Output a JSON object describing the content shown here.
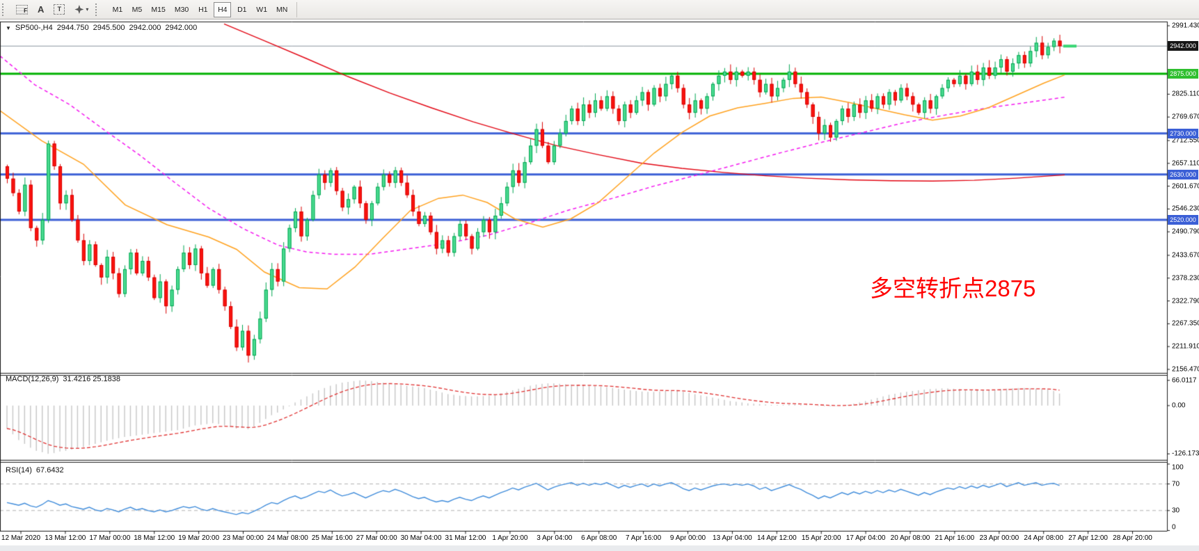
{
  "toolbar": {
    "tools": {
      "fibonacci": "F",
      "text": "A",
      "text_label": "T",
      "arrows_caret": "▾"
    },
    "timeframes": [
      "M1",
      "M5",
      "M15",
      "M30",
      "H1",
      "H4",
      "D1",
      "W1",
      "MN"
    ],
    "active_timeframe": "H4"
  },
  "quote_header": {
    "expander": "▼",
    "symbol": "SP500-,H4",
    "open": "2944.750",
    "high": "2945.500",
    "low": "2942.000",
    "close": "2942.000"
  },
  "annotation": {
    "text": "多空转折点2875",
    "color": "#ff0000"
  },
  "main_pane": {
    "price_ticks": [
      "2991.430",
      "2825.110",
      "2769.670",
      "2712.550",
      "2657.110",
      "2601.670",
      "2546.230",
      "2490.790",
      "2433.670",
      "2378.230",
      "2322.790",
      "2267.350",
      "2211.910",
      "2156.470"
    ],
    "price_tags": [
      {
        "label": "2942.000",
        "bg": "#161616"
      },
      {
        "label": "2875.000",
        "bg": "#2fbf2f"
      },
      {
        "label": "2730.000",
        "bg": "#3b5fd6"
      },
      {
        "label": "2630.000",
        "bg": "#3b5fd6"
      },
      {
        "label": "2520.000",
        "bg": "#3b5fd6"
      }
    ],
    "levels": [
      {
        "price": 2942,
        "color": "#8a959e",
        "width": 1
      },
      {
        "price": 2875,
        "color": "#00b200",
        "width": 3
      },
      {
        "price": 2730,
        "color": "#3b5fd6",
        "width": 3
      },
      {
        "price": 2630,
        "color": "#3b5fd6",
        "width": 3
      },
      {
        "price": 2520,
        "color": "#3b5fd6",
        "width": 3
      }
    ]
  },
  "macd_pane": {
    "label": "MACD(12,26,9)",
    "values": "31.4216 25.1838",
    "axis_ticks": [
      "66.0117",
      "0.00",
      "-126.173"
    ]
  },
  "rsi_pane": {
    "label": "RSI(14)",
    "value": "67.6432",
    "axis_ticks": [
      "100",
      "70",
      "30",
      "0"
    ],
    "levels": [
      70,
      30
    ]
  },
  "time_axis": {
    "labels": [
      "12 Mar 2020",
      "13 Mar 12:00",
      "17 Mar 00:00",
      "18 Mar 12:00",
      "19 Mar 20:00",
      "23 Mar 00:00",
      "24 Mar 08:00",
      "25 Mar 16:00",
      "27 Mar 00:00",
      "30 Mar 04:00",
      "31 Mar 12:00",
      "1 Apr 20:00",
      "3 Apr 04:00",
      "6 Apr 08:00",
      "7 Apr 16:00",
      "9 Apr 00:00",
      "13 Apr 04:00",
      "14 Apr 12:00",
      "15 Apr 20:00",
      "17 Apr 04:00",
      "20 Apr 08:00",
      "21 Apr 16:00",
      "23 Apr 00:00",
      "24 Apr 08:00",
      "27 Apr 12:00",
      "28 Apr 20:00"
    ]
  },
  "colors": {
    "candle_up_fill": "#4cdc92",
    "candle_up_stroke": "#00a651",
    "candle_dn_fill": "#fb1410",
    "candle_dn_stroke": "#d90000",
    "ma_orange": "#ffa21f",
    "ma_magenta": "#f518f0",
    "ma_red": "#e30613",
    "macd_hist": "#c6c6c6",
    "macd_signal": "#e03030",
    "rsi_line": "#3f8cdb",
    "rsi_level_dash": "#b0b0b0",
    "last_price_marker": "#37d673"
  },
  "chart_data": {
    "type": "candlestick",
    "symbol": "SP500-",
    "timeframe": "H4",
    "title": "SP500-,H4 2944.750 2945.500 2942.000 2942.000",
    "y_range": [
      2156.47,
      2991.43
    ],
    "ohlc_current": [
      2944.75,
      2945.5,
      2942.0,
      2942.0
    ],
    "first_open": 2650,
    "closes": [
      2620,
      2585,
      2540,
      2605,
      2500,
      2470,
      2520,
      2705,
      2650,
      2560,
      2580,
      2520,
      2470,
      2420,
      2460,
      2410,
      2380,
      2430,
      2390,
      2340,
      2400,
      2440,
      2390,
      2420,
      2380,
      2330,
      2370,
      2310,
      2350,
      2400,
      2440,
      2410,
      2450,
      2390,
      2360,
      2400,
      2350,
      2310,
      2260,
      2210,
      2250,
      2190,
      2230,
      2280,
      2350,
      2400,
      2370,
      2450,
      2500,
      2540,
      2480,
      2520,
      2580,
      2630,
      2610,
      2640,
      2590,
      2550,
      2570,
      2600,
      2560,
      2520,
      2560,
      2600,
      2630,
      2610,
      2640,
      2610,
      2580,
      2540,
      2510,
      2530,
      2490,
      2450,
      2470,
      2440,
      2480,
      2510,
      2480,
      2450,
      2490,
      2520,
      2490,
      2530,
      2560,
      2600,
      2640,
      2610,
      2660,
      2700,
      2740,
      2700,
      2660,
      2700,
      2730,
      2760,
      2790,
      2760,
      2800,
      2780,
      2810,
      2790,
      2820,
      2790,
      2760,
      2800,
      2780,
      2810,
      2830,
      2800,
      2840,
      2820,
      2850,
      2870,
      2840,
      2800,
      2780,
      2810,
      2790,
      2820,
      2850,
      2870,
      2880,
      2860,
      2880,
      2870,
      2880,
      2860,
      2830,
      2850,
      2820,
      2840,
      2860,
      2880,
      2850,
      2830,
      2800,
      2770,
      2730,
      2750,
      2720,
      2760,
      2790,
      2770,
      2800,
      2780,
      2810,
      2790,
      2820,
      2800,
      2830,
      2810,
      2840,
      2820,
      2800,
      2780,
      2810,
      2790,
      2820,
      2840,
      2860,
      2850,
      2870,
      2850,
      2880,
      2860,
      2890,
      2870,
      2890,
      2910,
      2880,
      2900,
      2920,
      2900,
      2930,
      2950,
      2920,
      2940,
      2955,
      2942
    ],
    "moving_averages": {
      "orange": [
        [
          0,
          2785
        ],
        [
          60,
          2712
        ],
        [
          120,
          2655
        ],
        [
          180,
          2556
        ],
        [
          240,
          2508
        ],
        [
          300,
          2478
        ],
        [
          340,
          2448
        ],
        [
          380,
          2393
        ],
        [
          430,
          2355
        ],
        [
          470,
          2352
        ],
        [
          510,
          2405
        ],
        [
          550,
          2475
        ],
        [
          590,
          2543
        ],
        [
          630,
          2572
        ],
        [
          665,
          2580
        ],
        [
          700,
          2562
        ],
        [
          740,
          2522
        ],
        [
          780,
          2502
        ],
        [
          820,
          2522
        ],
        [
          860,
          2562
        ],
        [
          900,
          2622
        ],
        [
          940,
          2682
        ],
        [
          980,
          2732
        ],
        [
          1020,
          2772
        ],
        [
          1060,
          2792
        ],
        [
          1100,
          2803
        ],
        [
          1140,
          2815
        ],
        [
          1180,
          2818
        ],
        [
          1220,
          2805
        ],
        [
          1260,
          2790
        ],
        [
          1300,
          2775
        ],
        [
          1340,
          2762
        ],
        [
          1380,
          2772
        ],
        [
          1420,
          2792
        ],
        [
          1460,
          2822
        ],
        [
          1500,
          2852
        ],
        [
          1530,
          2872
        ]
      ],
      "magenta": [
        [
          0,
          2918
        ],
        [
          50,
          2848
        ],
        [
          100,
          2800
        ],
        [
          150,
          2738
        ],
        [
          200,
          2678
        ],
        [
          250,
          2612
        ],
        [
          300,
          2548
        ],
        [
          350,
          2498
        ],
        [
          400,
          2458
        ],
        [
          440,
          2442
        ],
        [
          480,
          2436
        ],
        [
          530,
          2436
        ],
        [
          580,
          2448
        ],
        [
          640,
          2462
        ],
        [
          700,
          2482
        ],
        [
          760,
          2512
        ],
        [
          820,
          2545
        ],
        [
          880,
          2572
        ],
        [
          940,
          2602
        ],
        [
          1000,
          2628
        ],
        [
          1060,
          2655
        ],
        [
          1120,
          2682
        ],
        [
          1180,
          2708
        ],
        [
          1240,
          2732
        ],
        [
          1300,
          2756
        ],
        [
          1360,
          2775
        ],
        [
          1420,
          2792
        ],
        [
          1480,
          2806
        ],
        [
          1530,
          2818
        ]
      ],
      "red": [
        [
          322,
          2996
        ],
        [
          380,
          2955
        ],
        [
          440,
          2912
        ],
        [
          500,
          2868
        ],
        [
          560,
          2828
        ],
        [
          620,
          2792
        ],
        [
          680,
          2758
        ],
        [
          740,
          2728
        ],
        [
          800,
          2700
        ],
        [
          860,
          2678
        ],
        [
          920,
          2658
        ],
        [
          980,
          2645
        ],
        [
          1040,
          2635
        ],
        [
          1100,
          2627
        ],
        [
          1160,
          2621
        ],
        [
          1220,
          2617
        ],
        [
          1280,
          2615
        ],
        [
          1340,
          2614
        ],
        [
          1400,
          2616
        ],
        [
          1460,
          2621
        ],
        [
          1530,
          2629
        ]
      ]
    },
    "macd_histogram": [
      -60,
      -75,
      -90,
      -100,
      -110,
      -118,
      -122,
      -126,
      -124,
      -120,
      -118,
      -115,
      -112,
      -108,
      -104,
      -100,
      -96,
      -92,
      -88,
      -85,
      -82,
      -80,
      -78,
      -76,
      -74,
      -72,
      -70,
      -68,
      -66,
      -64,
      -60,
      -56,
      -52,
      -50,
      -48,
      -46,
      -48,
      -52,
      -56,
      -60,
      -58,
      -62,
      -55,
      -45,
      -35,
      -25,
      -18,
      -10,
      -2,
      8,
      16,
      24,
      32,
      40,
      46,
      52,
      56,
      60,
      62,
      64,
      66,
      65,
      64,
      62,
      60,
      58,
      56,
      54,
      52,
      50,
      48,
      46,
      42,
      38,
      34,
      30,
      28,
      26,
      25,
      24,
      24,
      25,
      26,
      28,
      32,
      36,
      40,
      44,
      48,
      52,
      55,
      57,
      58,
      58,
      57,
      56,
      55,
      54,
      53,
      52,
      51,
      50,
      48,
      46,
      44,
      42,
      40,
      38,
      37,
      36,
      36,
      37,
      38,
      39,
      38,
      36,
      33,
      30,
      27,
      24,
      21,
      18,
      15,
      12,
      10,
      8,
      6,
      5,
      4,
      3,
      2,
      2,
      2,
      3,
      3,
      2,
      1,
      0,
      -1,
      -2,
      -2,
      -1,
      0,
      2,
      5,
      8,
      12,
      16,
      20,
      24,
      28,
      31,
      34,
      36,
      38,
      40,
      42,
      43,
      44,
      45,
      45,
      44,
      43,
      42,
      41,
      40,
      40,
      41,
      42,
      43,
      44,
      45,
      46,
      46,
      45,
      44,
      43,
      42,
      38,
      31.42
    ],
    "rsi_values": [
      42,
      40,
      38,
      41,
      37,
      35,
      39,
      45,
      42,
      38,
      40,
      36,
      34,
      32,
      35,
      31,
      29,
      33,
      31,
      28,
      32,
      35,
      31,
      33,
      30,
      28,
      31,
      28,
      30,
      33,
      36,
      34,
      36,
      32,
      30,
      33,
      30,
      28,
      26,
      24,
      27,
      25,
      29,
      33,
      38,
      42,
      40,
      45,
      49,
      52,
      48,
      51,
      55,
      59,
      57,
      61,
      56,
      52,
      54,
      57,
      53,
      49,
      53,
      57,
      60,
      58,
      62,
      59,
      55,
      51,
      48,
      50,
      46,
      43,
      45,
      43,
      47,
      50,
      47,
      45,
      49,
      52,
      49,
      53,
      57,
      60,
      64,
      61,
      65,
      68,
      71,
      66,
      61,
      65,
      68,
      70,
      72,
      68,
      71,
      68,
      71,
      69,
      72,
      68,
      64,
      68,
      65,
      68,
      70,
      66,
      70,
      67,
      70,
      72,
      68,
      63,
      60,
      64,
      61,
      64,
      67,
      69,
      70,
      68,
      70,
      68,
      70,
      67,
      62,
      65,
      60,
      63,
      66,
      69,
      65,
      62,
      57,
      53,
      48,
      52,
      49,
      53,
      57,
      54,
      58,
      55,
      59,
      56,
      60,
      57,
      61,
      58,
      62,
      59,
      56,
      53,
      57,
      54,
      58,
      61,
      64,
      62,
      66,
      63,
      67,
      64,
      68,
      65,
      68,
      71,
      66,
      69,
      72,
      68,
      70,
      72,
      68,
      70,
      71,
      67.64
    ]
  }
}
